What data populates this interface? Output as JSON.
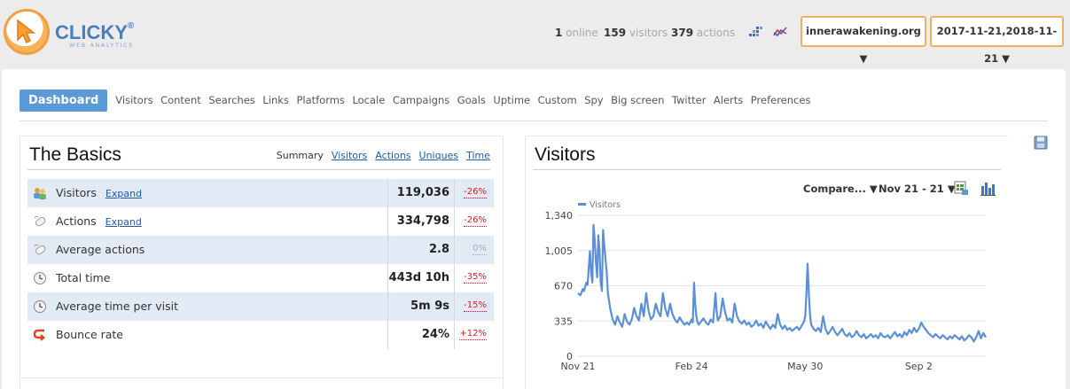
{
  "brand": {
    "name": "CLICKY",
    "reg": "®",
    "subtitle": "WEB ANALYTICS"
  },
  "header": {
    "online_count": "1",
    "online_label": "online",
    "visitors_count": "159",
    "visitors_label": "visitors",
    "actions_count": "379",
    "actions_label": "actions",
    "site_selector": "innerawakening.org ▼",
    "date_selector": "2017-11-21,2018-11-21 ▼"
  },
  "nav": {
    "active": "Dashboard",
    "items": [
      "Visitors",
      "Content",
      "Searches",
      "Links",
      "Platforms",
      "Locale",
      "Campaigns",
      "Goals",
      "Uptime",
      "Custom",
      "Spy",
      "Big screen",
      "Twitter",
      "Alerts",
      "Preferences"
    ]
  },
  "basics": {
    "title": "The Basics",
    "tabs": {
      "summary": "Summary",
      "visitors": "Visitors",
      "actions": "Actions",
      "uniques": "Uniques",
      "time": "Time"
    },
    "expand_label": "Expand",
    "rows": [
      {
        "label": "Visitors",
        "value": "119,036",
        "change": "-26%",
        "icon": "visitors-icon",
        "expand": true
      },
      {
        "label": "Actions",
        "value": "334,798",
        "change": "-26%",
        "icon": "mouse-icon",
        "expand": true
      },
      {
        "label": "Average actions",
        "value": "2.8",
        "change": "0%",
        "icon": "mouse-icon",
        "expand": false
      },
      {
        "label": "Total time",
        "value": "443d 10h",
        "change": "-35%",
        "icon": "clock-icon",
        "expand": false
      },
      {
        "label": "Average time per visit",
        "value": "5m 9s",
        "change": "-15%",
        "icon": "clock-icon",
        "expand": false
      },
      {
        "label": "Bounce rate",
        "value": "24%",
        "change": "+12%",
        "icon": "bounce-icon",
        "expand": false
      }
    ]
  },
  "visitors_panel": {
    "title": "Visitors",
    "compare_label": "Compare... ▼",
    "range_label": "Nov 21 - 21 ▼"
  },
  "colors": {
    "accent": "#5b9ad6",
    "line": "#5b8fd6",
    "negative": "#cc2222",
    "dropdown_border": "#f0b060"
  },
  "chart_data": {
    "type": "line",
    "legend": [
      "Visitors"
    ],
    "ylim": [
      0,
      1340
    ],
    "y_ticks": [
      "0",
      "335",
      "670",
      "1,005",
      "1,340"
    ],
    "x_ticks": [
      "Nov 21",
      "Feb 24",
      "May 30",
      "Sep 2"
    ],
    "x_tick_days": [
      0,
      95,
      190,
      285
    ],
    "grid": true,
    "series": [
      {
        "name": "Visitors",
        "points": [
          [
            0,
            600
          ],
          [
            2,
            580
          ],
          [
            4,
            640
          ],
          [
            5,
            620
          ],
          [
            7,
            700
          ],
          [
            8,
            680
          ],
          [
            10,
            1000
          ],
          [
            11,
            800
          ],
          [
            12,
            700
          ],
          [
            13,
            1250
          ],
          [
            14,
            1100
          ],
          [
            15,
            900
          ],
          [
            16,
            750
          ],
          [
            17,
            1150
          ],
          [
            18,
            1000
          ],
          [
            19,
            700
          ],
          [
            20,
            620
          ],
          [
            21,
            1200
          ],
          [
            22,
            1050
          ],
          [
            24,
            800
          ],
          [
            25,
            600
          ],
          [
            27,
            450
          ],
          [
            29,
            350
          ],
          [
            31,
            300
          ],
          [
            33,
            380
          ],
          [
            35,
            320
          ],
          [
            37,
            280
          ],
          [
            39,
            400
          ],
          [
            41,
            330
          ],
          [
            43,
            300
          ],
          [
            45,
            350
          ],
          [
            47,
            460
          ],
          [
            49,
            380
          ],
          [
            51,
            340
          ],
          [
            53,
            500
          ],
          [
            55,
            380
          ],
          [
            57,
            600
          ],
          [
            59,
            430
          ],
          [
            61,
            350
          ],
          [
            63,
            380
          ],
          [
            65,
            500
          ],
          [
            67,
            420
          ],
          [
            69,
            380
          ],
          [
            71,
            600
          ],
          [
            73,
            450
          ],
          [
            75,
            380
          ],
          [
            77,
            500
          ],
          [
            79,
            400
          ],
          [
            81,
            350
          ],
          [
            83,
            320
          ],
          [
            85,
            370
          ],
          [
            87,
            330
          ],
          [
            89,
            300
          ],
          [
            91,
            320
          ],
          [
            93,
            300
          ],
          [
            95,
            350
          ],
          [
            96,
            320
          ],
          [
            97,
            700
          ],
          [
            98,
            500
          ],
          [
            99,
            380
          ],
          [
            100,
            320
          ],
          [
            101,
            300
          ],
          [
            103,
            330
          ],
          [
            105,
            360
          ],
          [
            107,
            320
          ],
          [
            109,
            300
          ],
          [
            111,
            350
          ],
          [
            113,
            320
          ],
          [
            115,
            600
          ],
          [
            116,
            420
          ],
          [
            117,
            340
          ],
          [
            119,
            380
          ],
          [
            121,
            550
          ],
          [
            123,
            420
          ],
          [
            125,
            340
          ],
          [
            127,
            360
          ],
          [
            129,
            320
          ],
          [
            131,
            500
          ],
          [
            133,
            380
          ],
          [
            135,
            330
          ],
          [
            137,
            310
          ],
          [
            139,
            340
          ],
          [
            141,
            300
          ],
          [
            143,
            320
          ],
          [
            145,
            280
          ],
          [
            147,
            300
          ],
          [
            149,
            340
          ],
          [
            151,
            290
          ],
          [
            153,
            310
          ],
          [
            155,
            270
          ],
          [
            157,
            330
          ],
          [
            159,
            290
          ],
          [
            161,
            260
          ],
          [
            163,
            300
          ],
          [
            165,
            270
          ],
          [
            167,
            400
          ],
          [
            169,
            300
          ],
          [
            171,
            260
          ],
          [
            173,
            290
          ],
          [
            175,
            250
          ],
          [
            177,
            270
          ],
          [
            179,
            240
          ],
          [
            181,
            260
          ],
          [
            183,
            280
          ],
          [
            185,
            250
          ],
          [
            187,
            290
          ],
          [
            189,
            330
          ],
          [
            190,
            380
          ],
          [
            191,
            600
          ],
          [
            192,
            880
          ],
          [
            193,
            600
          ],
          [
            194,
            400
          ],
          [
            195,
            300
          ],
          [
            197,
            260
          ],
          [
            199,
            240
          ],
          [
            201,
            270
          ],
          [
            203,
            230
          ],
          [
            205,
            380
          ],
          [
            207,
            260
          ],
          [
            209,
            210
          ],
          [
            211,
            240
          ],
          [
            213,
            280
          ],
          [
            215,
            230
          ],
          [
            217,
            200
          ],
          [
            219,
            230
          ],
          [
            221,
            260
          ],
          [
            223,
            210
          ],
          [
            225,
            190
          ],
          [
            227,
            220
          ],
          [
            229,
            180
          ],
          [
            231,
            200
          ],
          [
            233,
            240
          ],
          [
            235,
            200
          ],
          [
            237,
            180
          ],
          [
            239,
            210
          ],
          [
            241,
            170
          ],
          [
            243,
            190
          ],
          [
            245,
            210
          ],
          [
            247,
            180
          ],
          [
            249,
            200
          ],
          [
            251,
            170
          ],
          [
            253,
            220
          ],
          [
            255,
            190
          ],
          [
            257,
            180
          ],
          [
            259,
            200
          ],
          [
            261,
            170
          ],
          [
            263,
            200
          ],
          [
            265,
            230
          ],
          [
            267,
            190
          ],
          [
            269,
            210
          ],
          [
            271,
            180
          ],
          [
            273,
            230
          ],
          [
            275,
            200
          ],
          [
            277,
            250
          ],
          [
            279,
            220
          ],
          [
            281,
            270
          ],
          [
            283,
            230
          ],
          [
            285,
            260
          ],
          [
            287,
            320
          ],
          [
            289,
            280
          ],
          [
            291,
            250
          ],
          [
            293,
            220
          ],
          [
            295,
            200
          ],
          [
            297,
            180
          ],
          [
            299,
            210
          ],
          [
            301,
            190
          ],
          [
            303,
            170
          ],
          [
            305,
            200
          ],
          [
            307,
            180
          ],
          [
            309,
            160
          ],
          [
            311,
            190
          ],
          [
            313,
            170
          ],
          [
            315,
            200
          ],
          [
            317,
            180
          ],
          [
            319,
            160
          ],
          [
            321,
            190
          ],
          [
            323,
            150
          ],
          [
            325,
            170
          ],
          [
            327,
            200
          ],
          [
            329,
            180
          ],
          [
            331,
            140
          ],
          [
            333,
            180
          ],
          [
            335,
            240
          ],
          [
            337,
            170
          ],
          [
            339,
            220
          ],
          [
            341,
            180
          ]
        ]
      }
    ]
  }
}
